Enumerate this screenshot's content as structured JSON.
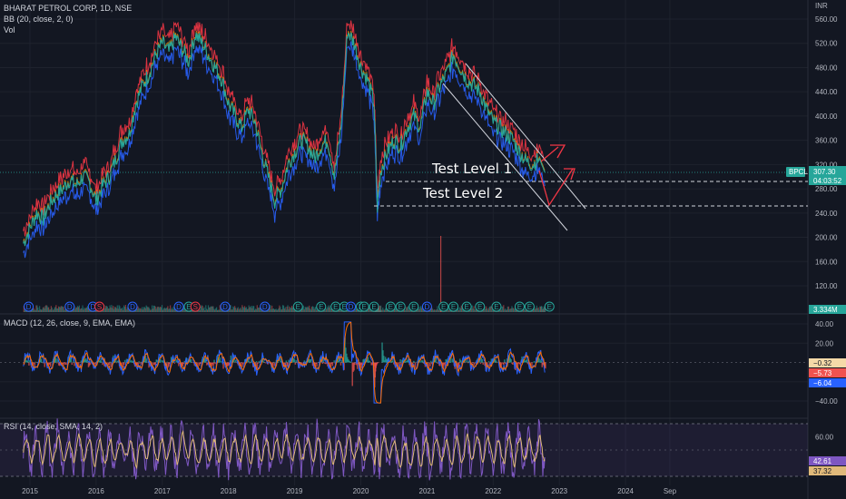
{
  "header": {
    "title": "BHARAT PETROL CORP, 1D, NSE",
    "indicator_bb": "BB (20, close, 2, 0)",
    "indicator_vol": "Vol"
  },
  "currency": "INR",
  "annotations": {
    "level1": "Test Level 1",
    "level2": "Test Level 2"
  },
  "price_badges": {
    "symbol": "BPCL",
    "price": "307.30",
    "countdown": "04:03:52",
    "volume": "3.334M"
  },
  "macd": {
    "title": "MACD (12, 26, close, 9, EMA, EMA)",
    "badge_values": [
      "−0.32",
      "−5.73",
      "−6.04"
    ],
    "badge_colors": [
      "#f5d9a8",
      "#ef5350",
      "#2962ff"
    ]
  },
  "rsi": {
    "title": "RSI (14, close, SMA, 14, 2)",
    "badge_values": [
      "42.61",
      "37.32"
    ],
    "badge_colors": [
      "#7e57c2",
      "#e0b97a"
    ]
  },
  "colors": {
    "background": "#131722",
    "price_line": "#26a69a",
    "bb_upper": "#f23645",
    "bb_lower": "#2962ff",
    "arrow": "#f23645",
    "rsi_line": "#7e57c2",
    "rsi_signal": "#e0b97a"
  },
  "events": [
    "D",
    "D",
    "D",
    "S",
    "D",
    "D",
    "E",
    "S",
    "D",
    "D",
    "E",
    "E",
    "E",
    "E",
    "D",
    "E",
    "E",
    "E",
    "E",
    "E",
    "E",
    "D",
    "E",
    "E",
    "E",
    "E",
    "E",
    "E",
    "E",
    "E"
  ],
  "chart_data": [
    {
      "type": "line",
      "name": "price",
      "title": "BHARAT PETROL CORP, 1D, NSE",
      "y_unit": "INR",
      "ylim": [
        100,
        565
      ],
      "y_ticks": [
        "560.00",
        "520.00",
        "480.00",
        "440.00",
        "400.00",
        "360.00",
        "320.00",
        "280.00",
        "240.00",
        "200.00",
        "160.00",
        "120.00"
      ],
      "y_tick_values": [
        560,
        520,
        480,
        440,
        400,
        360,
        320,
        280,
        240,
        200,
        160,
        120
      ],
      "x_ticks": [
        "2015",
        "2016",
        "2017",
        "2018",
        "2019",
        "2020",
        "2021",
        "2022",
        "2023",
        "2024",
        "Sep"
      ],
      "x_tick_years": [
        2015,
        2016,
        2017,
        2018,
        2019,
        2020,
        2021,
        2022,
        2023,
        2024,
        2024.67
      ],
      "x": [
        2014.9,
        2015.0,
        2015.1,
        2015.2,
        2015.3,
        2015.4,
        2015.5,
        2015.6,
        2015.7,
        2015.8,
        2015.9,
        2016.0,
        2016.1,
        2016.2,
        2016.3,
        2016.4,
        2016.5,
        2016.6,
        2016.7,
        2016.8,
        2016.9,
        2017.0,
        2017.1,
        2017.2,
        2017.3,
        2017.4,
        2017.5,
        2017.6,
        2017.7,
        2017.8,
        2017.9,
        2018.0,
        2018.1,
        2018.2,
        2018.3,
        2018.4,
        2018.5,
        2018.6,
        2018.7,
        2018.8,
        2018.9,
        2019.0,
        2019.1,
        2019.2,
        2019.3,
        2019.4,
        2019.5,
        2019.6,
        2019.7,
        2019.8,
        2019.9,
        2020.0,
        2020.1,
        2020.2,
        2020.25,
        2020.3,
        2020.4,
        2020.5,
        2020.6,
        2020.7,
        2020.8,
        2020.9,
        2021.0,
        2021.1,
        2021.2,
        2021.3,
        2021.4,
        2021.5,
        2021.6,
        2021.7,
        2021.8,
        2021.9,
        2022.0,
        2022.1,
        2022.2,
        2022.3,
        2022.4,
        2022.5,
        2022.6,
        2022.7,
        2022.78
      ],
      "values": [
        190,
        215,
        240,
        230,
        255,
        270,
        280,
        295,
        285,
        300,
        290,
        260,
        285,
        300,
        330,
        360,
        370,
        420,
        450,
        470,
        500,
        520,
        505,
        530,
        510,
        490,
        535,
        520,
        500,
        480,
        460,
        420,
        400,
        380,
        410,
        390,
        340,
        300,
        260,
        280,
        320,
        340,
        360,
        350,
        330,
        350,
        360,
        300,
        380,
        540,
        520,
        480,
        460,
        420,
        250,
        310,
        340,
        360,
        350,
        380,
        400,
        380,
        440,
        420,
        450,
        470,
        500,
        480,
        460,
        450,
        440,
        410,
        390,
        380,
        370,
        360,
        340,
        325,
        320,
        330,
        307.3
      ]
    },
    {
      "type": "bar",
      "name": "volume",
      "note_peak": 1
    },
    {
      "type": "line",
      "name": "MACD (12, 26, close, 9, EMA, EMA)",
      "ylim": [
        -55,
        50
      ],
      "y_ticks": [
        "40.00",
        "20.00",
        "−20.00",
        "−40.00"
      ],
      "y_tick_values": [
        40,
        20,
        -20,
        -40
      ]
    },
    {
      "type": "line",
      "name": "RSI (14, close, SMA, 14, 2)",
      "ylim": [
        25,
        80
      ],
      "y_ticks": [
        "60.00"
      ],
      "y_tick_values": [
        60
      ],
      "band": [
        30,
        70
      ]
    }
  ]
}
